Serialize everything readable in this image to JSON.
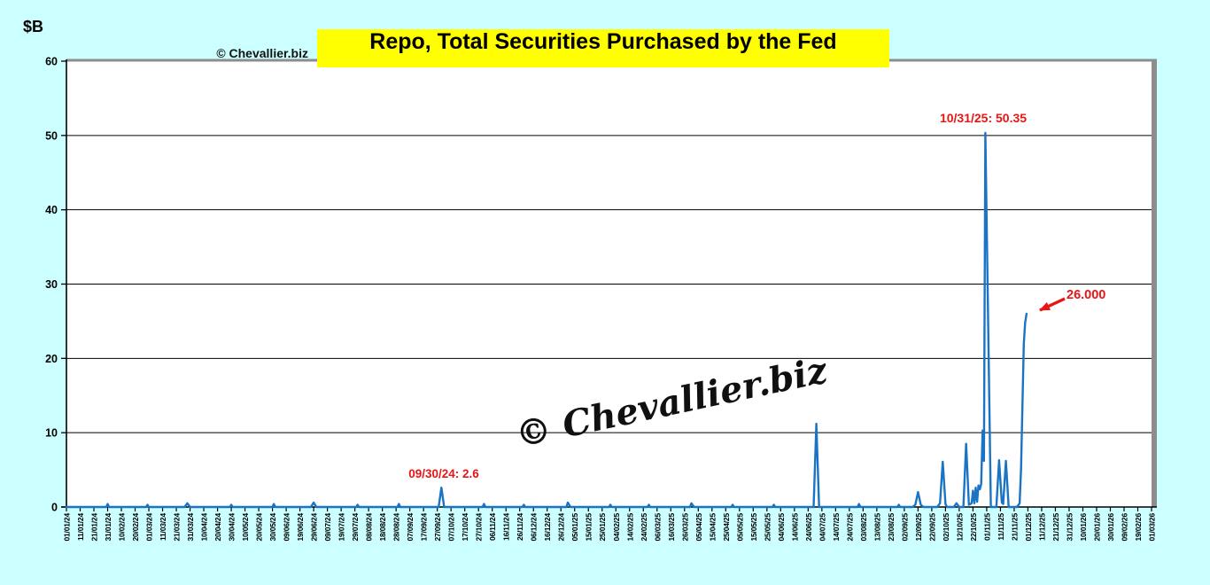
{
  "title": "Repo, Total Securities Purchased by the Fed",
  "watermark": {
    "small": "© Chevallier.biz",
    "large": "© Chevallier.biz"
  },
  "colors": {
    "background": "#ccffff",
    "plot_background": "#ffffff",
    "title_background": "#ffff00",
    "line_blue": "#1a73c4",
    "annotation_red": "#e81515",
    "gridline": "#000000",
    "border_gray": "#8d8d8d"
  },
  "chart_data": {
    "type": "line",
    "title": "Repo, Total Securities Purchased by the Fed",
    "ylabel": "$B",
    "ylim": [
      0,
      60
    ],
    "y_ticks": [
      0,
      10,
      20,
      30,
      40,
      50,
      60
    ],
    "grid": "horizontal",
    "x_unit": "days since 01/01/2024, axis labeled every 10 days (dd/mm/yy)",
    "x_day_range": [
      0,
      790
    ],
    "x_tick_interval_days": 10,
    "x_tick_labels": [
      "01/01/24",
      "11/01/24",
      "21/01/24",
      "31/01/24",
      "10/02/24",
      "20/02/24",
      "01/03/24",
      "11/03/24",
      "21/03/24",
      "31/03/24",
      "10/04/24",
      "20/04/24",
      "30/04/24",
      "10/05/24",
      "20/05/24",
      "30/05/24",
      "09/06/24",
      "19/06/24",
      "29/06/24",
      "09/07/24",
      "19/07/24",
      "29/07/24",
      "08/08/24",
      "18/08/24",
      "28/08/24",
      "07/09/24",
      "17/09/24",
      "27/09/24",
      "07/10/24",
      "17/10/24",
      "27/10/24",
      "06/11/24",
      "16/11/24",
      "26/11/24",
      "06/12/24",
      "16/12/24",
      "26/12/24",
      "05/01/25",
      "15/01/25",
      "25/01/25",
      "04/02/25",
      "14/02/25",
      "24/02/25",
      "06/03/25",
      "16/03/25",
      "26/03/25",
      "05/04/25",
      "15/04/25",
      "25/04/25",
      "05/05/25",
      "15/05/25",
      "25/05/25",
      "04/06/25",
      "14/06/25",
      "24/06/25",
      "04/07/25",
      "14/07/25",
      "24/07/25",
      "03/08/25",
      "13/08/25",
      "23/08/25",
      "02/09/25",
      "12/09/25",
      "22/09/25",
      "02/10/25",
      "12/10/25",
      "22/10/25",
      "01/11/25",
      "11/11/25",
      "21/11/25",
      "01/12/25",
      "11/12/25",
      "21/12/25",
      "31/12/25",
      "10/01/26",
      "20/01/26",
      "30/01/26",
      "09/02/26",
      "19/02/26",
      "01/03/26"
    ],
    "series": [
      {
        "name": "Repo, total securities purchased by the Fed ($B)",
        "color": "#1a73c4",
        "points_day_value": [
          [
            0,
            0
          ],
          [
            29,
            0
          ],
          [
            30,
            0.4
          ],
          [
            31,
            0
          ],
          [
            58,
            0
          ],
          [
            59,
            0.3
          ],
          [
            60,
            0
          ],
          [
            86,
            0
          ],
          [
            88,
            0.5
          ],
          [
            90,
            0
          ],
          [
            119,
            0
          ],
          [
            120,
            0.3
          ],
          [
            121,
            0
          ],
          [
            150,
            0
          ],
          [
            151,
            0.4
          ],
          [
            152,
            0
          ],
          [
            178,
            0
          ],
          [
            180,
            0.6
          ],
          [
            182,
            0
          ],
          [
            211,
            0
          ],
          [
            212,
            0.3
          ],
          [
            213,
            0
          ],
          [
            241,
            0
          ],
          [
            242,
            0.4
          ],
          [
            243,
            0
          ],
          [
            271,
            0
          ],
          [
            273,
            2.6
          ],
          [
            275,
            0
          ],
          [
            303,
            0
          ],
          [
            304,
            0.4
          ],
          [
            305,
            0
          ],
          [
            332,
            0
          ],
          [
            333,
            0.3
          ],
          [
            334,
            0
          ],
          [
            364,
            0
          ],
          [
            365,
            0.6
          ],
          [
            367,
            0
          ],
          [
            395,
            0
          ],
          [
            396,
            0.3
          ],
          [
            397,
            0
          ],
          [
            423,
            0
          ],
          [
            424,
            0.3
          ],
          [
            425,
            0
          ],
          [
            454,
            0
          ],
          [
            455,
            0.5
          ],
          [
            457,
            0
          ],
          [
            484,
            0
          ],
          [
            485,
            0.3
          ],
          [
            486,
            0
          ],
          [
            514,
            0
          ],
          [
            515,
            0.3
          ],
          [
            516,
            0
          ],
          [
            544,
            0
          ],
          [
            546,
            11.2
          ],
          [
            548,
            0
          ],
          [
            576,
            0
          ],
          [
            577,
            0.4
          ],
          [
            578,
            0
          ],
          [
            605,
            0
          ],
          [
            606,
            0.3
          ],
          [
            607,
            0
          ],
          [
            616,
            0
          ],
          [
            618,
            0.3
          ],
          [
            620,
            2.0
          ],
          [
            622,
            0.3
          ],
          [
            624,
            0
          ],
          [
            634,
            0
          ],
          [
            636,
            0.5
          ],
          [
            638,
            6.1
          ],
          [
            640,
            0.4
          ],
          [
            641,
            0
          ],
          [
            646,
            0
          ],
          [
            648,
            0.5
          ],
          [
            650,
            0
          ],
          [
            653,
            0
          ],
          [
            655,
            8.5
          ],
          [
            657,
            0.3
          ],
          [
            659,
            0.5
          ],
          [
            660,
            2.2
          ],
          [
            661,
            0.5
          ],
          [
            662,
            2.6
          ],
          [
            663,
            0.7
          ],
          [
            664,
            2.9
          ],
          [
            665,
            2.4
          ],
          [
            666,
            3.1
          ],
          [
            667,
            10.3
          ],
          [
            668,
            6.2
          ],
          [
            669,
            50.35
          ],
          [
            673,
            0
          ],
          [
            677,
            0
          ],
          [
            679,
            6.3
          ],
          [
            681,
            0.6
          ],
          [
            682,
            0.4
          ],
          [
            684,
            6.2
          ],
          [
            686,
            0
          ],
          [
            692,
            0
          ],
          [
            694,
            0.5
          ],
          [
            695,
            5.2
          ],
          [
            697,
            22
          ],
          [
            698,
            24.8
          ],
          [
            699,
            26
          ]
        ]
      }
    ],
    "annotations": [
      {
        "text": "09/30/24: 2.6",
        "day": 273,
        "value": 2.6
      },
      {
        "text": "10/31/25: 50.35",
        "day": 669,
        "value": 50.35
      },
      {
        "text": "26.000",
        "day": 699,
        "value": 26.0,
        "arrow": true
      }
    ],
    "legend": "none"
  }
}
